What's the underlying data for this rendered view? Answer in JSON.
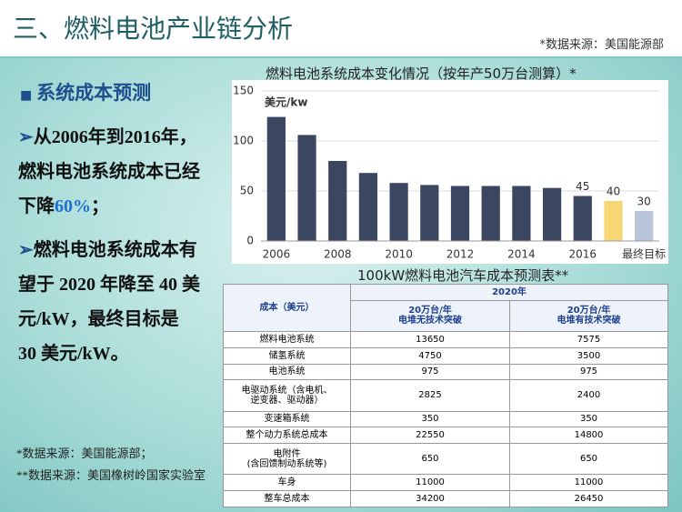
{
  "header": {
    "title": "三、燃料电池产业链分析",
    "source": "*数据来源：美国能源部"
  },
  "section": "系统成本预测",
  "bullets": [
    {
      "parts": [
        "从2006年到2016年，燃料电池系统成本已经下降",
        "60%",
        "；"
      ]
    },
    {
      "parts": [
        "燃料电池系统成本有望于 2020 年降至 40 美元/kW，最终目标是 30 美元/kW。"
      ]
    }
  ],
  "footnotes": [
    "*数据来源：美国能源部；",
    "**数据来源：美国橡树岭国家实验室"
  ],
  "chart_data": {
    "type": "bar",
    "title": "燃料电池系统成本变化情况（按年产50万台测算）*",
    "y_unit": "美元/kw",
    "categories": [
      "2006",
      null,
      "2008",
      null,
      "2010",
      null,
      "2012",
      null,
      "2014",
      null,
      "2016",
      null,
      "最终目标"
    ],
    "values": [
      124,
      106,
      80,
      68,
      58,
      56,
      55,
      55,
      55,
      53,
      45,
      40,
      30
    ],
    "value_labels": [
      null,
      null,
      null,
      null,
      null,
      null,
      null,
      null,
      null,
      null,
      "45",
      "40",
      "30"
    ],
    "colors": [
      "#3b4660",
      "#3b4660",
      "#3b4660",
      "#3b4660",
      "#3b4660",
      "#3b4660",
      "#3b4660",
      "#3b4660",
      "#3b4660",
      "#3b4660",
      "#3b4660",
      "#f7d774",
      "#b8c4d8"
    ],
    "ylim": [
      0,
      150
    ],
    "yticks": [
      0,
      50,
      100,
      150
    ],
    "grid": true
  },
  "table": {
    "title": "100kW燃料电池汽车成本预测表**",
    "header": [
      "成本（美元）",
      "2020年",
      "20万台/年\n电堆无技术突破",
      "20万台/年\n电堆有技术突破"
    ],
    "rows": [
      [
        "燃料电池系统",
        "13650",
        "7575"
      ],
      [
        "储氢系统",
        "4750",
        "3500"
      ],
      [
        "电池系统",
        "975",
        "975"
      ],
      [
        "电驱动系统（含电机、\n逆变器、驱动器）",
        "2825",
        "2400"
      ],
      [
        "变速箱系统",
        "350",
        "350"
      ],
      [
        "整个动力系统总成本",
        "22550",
        "14800"
      ],
      [
        "电附件\n(含回馈制动系统等)",
        "650",
        "650"
      ],
      [
        "车身",
        "11000",
        "11000"
      ],
      [
        "整车总成本",
        "34200",
        "26450"
      ]
    ]
  }
}
